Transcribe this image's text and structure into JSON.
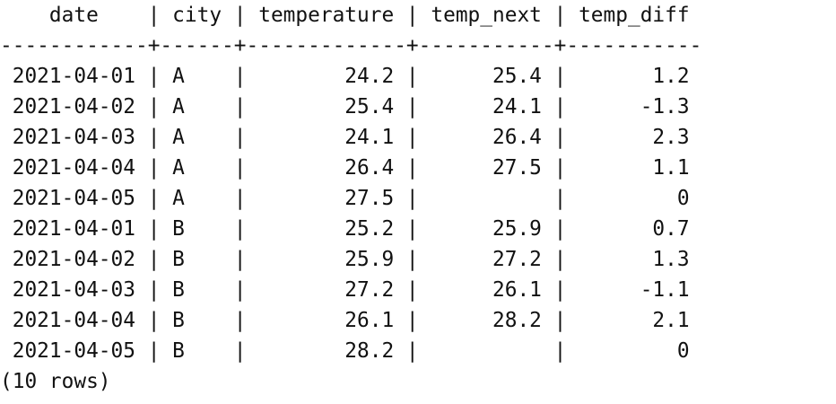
{
  "query_result": {
    "columns": [
      {
        "name": "date",
        "width": 12,
        "align": "left"
      },
      {
        "name": "city",
        "width": 6,
        "align": "left"
      },
      {
        "name": "temperature",
        "width": 13,
        "align": "right"
      },
      {
        "name": "temp_next",
        "width": 11,
        "align": "right"
      },
      {
        "name": "temp_diff",
        "width": 11,
        "align": "right"
      }
    ],
    "header_row": " date | city | temperature | temp_next | temp_diff",
    "rows": [
      [
        "2021-04-01",
        "A",
        "24.2",
        "25.4",
        "1.2"
      ],
      [
        "2021-04-02",
        "A",
        "25.4",
        "24.1",
        "-1.3"
      ],
      [
        "2021-04-03",
        "A",
        "24.1",
        "26.4",
        "2.3"
      ],
      [
        "2021-04-04",
        "A",
        "26.4",
        "27.5",
        "1.1"
      ],
      [
        "2021-04-05",
        "A",
        "27.5",
        "",
        "0"
      ],
      [
        "2021-04-01",
        "B",
        "25.2",
        "25.9",
        "0.7"
      ],
      [
        "2021-04-02",
        "B",
        "25.9",
        "27.2",
        "1.3"
      ],
      [
        "2021-04-03",
        "B",
        "27.2",
        "26.1",
        "-1.1"
      ],
      [
        "2021-04-04",
        "B",
        "26.1",
        "28.2",
        "2.1"
      ],
      [
        "2021-04-05",
        "B",
        "28.2",
        "",
        "0"
      ]
    ],
    "footer": "(10 rows)"
  }
}
